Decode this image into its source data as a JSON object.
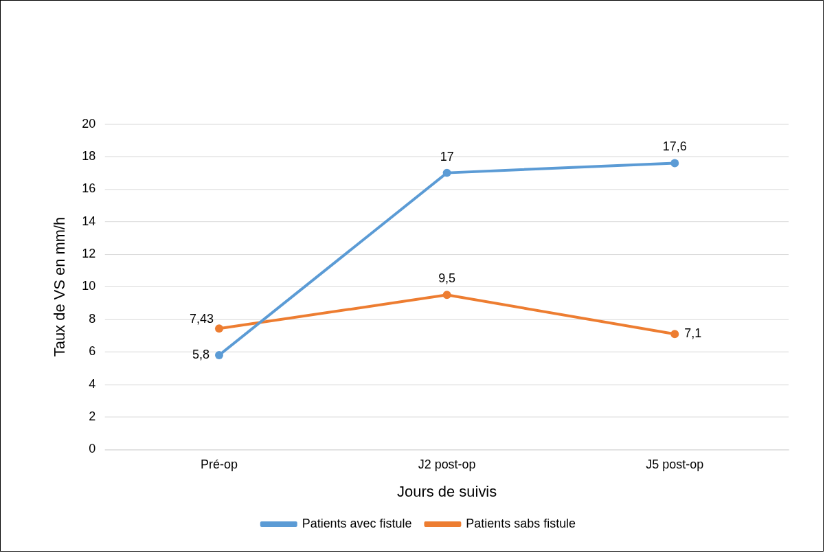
{
  "chart_data": {
    "type": "line",
    "xlabel": "Jours de suivis",
    "ylabel": "Taux de VS en mm/h",
    "categories": [
      "Pré-op",
      "J2 post-op",
      "J5 post-op"
    ],
    "series": [
      {
        "name": "Patients avec fistule",
        "color": "#5b9bd5",
        "values": [
          5.8,
          17,
          17.6
        ],
        "value_labels": [
          "5,8",
          "17",
          "17,6"
        ]
      },
      {
        "name": "Patients sabs fistule",
        "color": "#ed7d31",
        "values": [
          7.43,
          9.5,
          7.1
        ],
        "value_labels": [
          "7,43",
          "9,5",
          "7,1"
        ]
      }
    ],
    "ylim": [
      0,
      20
    ],
    "yticks": [
      0,
      2,
      4,
      6,
      8,
      10,
      12,
      14,
      16,
      18,
      20
    ],
    "grid": "y",
    "legend": "bottom",
    "marker": "circle",
    "line_style": "solid"
  }
}
